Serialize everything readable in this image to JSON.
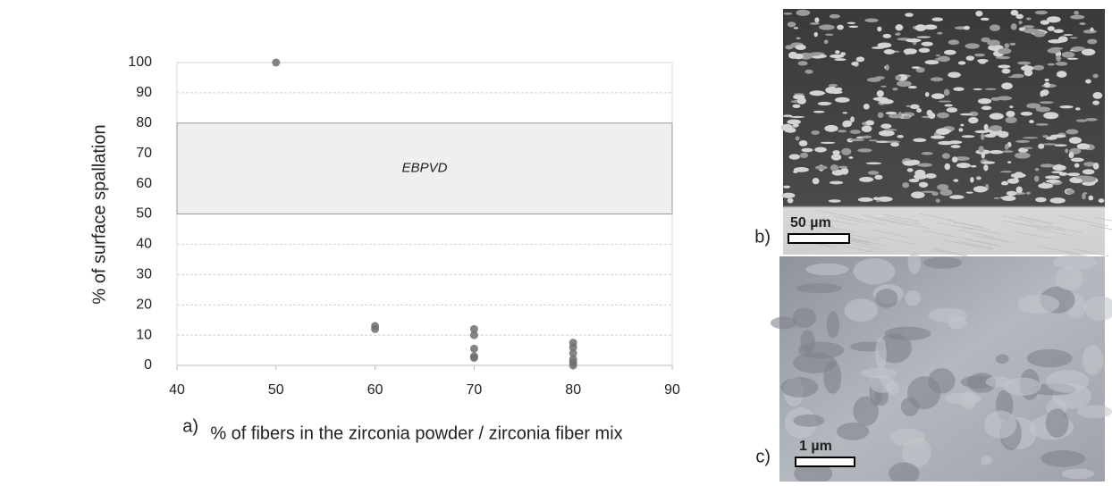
{
  "chart_data": {
    "type": "scatter",
    "x": [
      50,
      60,
      60,
      70,
      70,
      70,
      70,
      70,
      80,
      80,
      80,
      80,
      80,
      80
    ],
    "values": [
      100,
      13,
      12,
      12,
      10,
      5.5,
      3,
      2.5,
      7.5,
      6,
      4,
      2,
      1,
      0
    ],
    "color": "#6e6e6e",
    "band": {
      "label": "EBPVD",
      "range": [
        50,
        80
      ],
      "color": "#efefef"
    },
    "xlabel": "% of fibers in the zirconia powder / zirconia fiber mix",
    "ylabel": "% of surface spallation",
    "xlim": [
      40,
      90
    ],
    "xticks": [
      40,
      50,
      60,
      70,
      80,
      90
    ],
    "ylim": [
      0,
      100
    ],
    "yticks": [
      0,
      10,
      20,
      30,
      40,
      50,
      60,
      70,
      80,
      90,
      100
    ],
    "grid": true
  },
  "panels": {
    "a": "a)",
    "b": "b)",
    "c": "c)"
  },
  "scale_bars": [
    "50 µm",
    "1 µm"
  ]
}
